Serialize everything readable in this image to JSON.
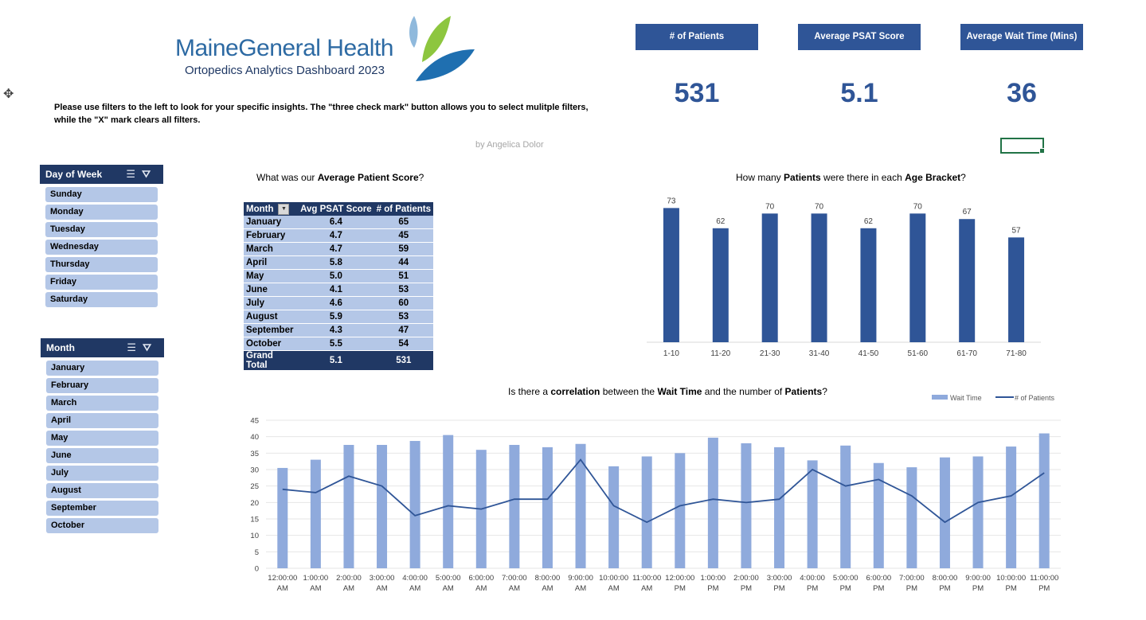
{
  "header": {
    "logo_text": "MaineGeneral Health",
    "subtitle": "Ortopedics Analytics Dashboard 2023",
    "instructions": "Please use filters to the left to look for your specific insights. The \"three check mark\" button allows you to select mulitple filters, while the \"X\" mark clears all filters.",
    "byline": "by Angelica Dolor"
  },
  "kpis": [
    {
      "label": "# of Patients",
      "value": "531"
    },
    {
      "label": "Average PSAT Score",
      "value": "5.1"
    },
    {
      "label": "Average Wait Time (Mins)",
      "value": "36"
    }
  ],
  "slicers": {
    "day": {
      "title": "Day of Week",
      "items": [
        "Sunday",
        "Monday",
        "Tuesday",
        "Wednesday",
        "Thursday",
        "Friday",
        "Saturday"
      ]
    },
    "month": {
      "title": "Month",
      "items": [
        "January",
        "February",
        "March",
        "April",
        "May",
        "June",
        "July",
        "August",
        "September",
        "October"
      ]
    }
  },
  "pivot": {
    "title_parts": [
      "What was our ",
      "Average Patient Score",
      "?"
    ],
    "headers": [
      "Month",
      "Avg PSAT Score",
      "# of Patients"
    ],
    "rows": [
      [
        "January",
        "6.4",
        "65"
      ],
      [
        "February",
        "4.7",
        "45"
      ],
      [
        "March",
        "4.7",
        "59"
      ],
      [
        "April",
        "5.8",
        "44"
      ],
      [
        "May",
        "5.0",
        "51"
      ],
      [
        "June",
        "4.1",
        "53"
      ],
      [
        "July",
        "4.6",
        "60"
      ],
      [
        "August",
        "5.9",
        "53"
      ],
      [
        "September",
        "4.3",
        "47"
      ],
      [
        "October",
        "5.5",
        "54"
      ]
    ],
    "total": [
      "Grand Total",
      "5.1",
      "531"
    ]
  },
  "chart_data": [
    {
      "type": "bar",
      "title_parts": [
        "How many ",
        "Patients",
        " were there in each ",
        "Age Bracket",
        "?"
      ],
      "categories": [
        "1-10",
        "11-20",
        "21-30",
        "31-40",
        "41-50",
        "51-60",
        "61-70",
        "71-80"
      ],
      "values": [
        73,
        62,
        70,
        70,
        62,
        70,
        67,
        57
      ],
      "ylim": [
        0,
        80
      ],
      "color": "#2f5597",
      "data_labels": true
    },
    {
      "type": "bar+line",
      "title_parts": [
        "Is there a ",
        "correlation",
        " between the ",
        "Wait Time",
        " and the number of ",
        "Patients",
        "?"
      ],
      "categories": [
        "12:00:00 AM",
        "1:00:00 AM",
        "2:00:00 AM",
        "3:00:00 AM",
        "4:00:00 AM",
        "5:00:00 AM",
        "6:00:00 AM",
        "7:00:00 AM",
        "8:00:00 AM",
        "9:00:00 AM",
        "10:00:00 AM",
        "11:00:00 AM",
        "12:00:00 PM",
        "1:00:00 PM",
        "2:00:00 PM",
        "3:00:00 PM",
        "4:00:00 PM",
        "5:00:00 PM",
        "6:00:00 PM",
        "7:00:00 PM",
        "8:00:00 PM",
        "9:00:00 PM",
        "10:00:00 PM",
        "11:00:00 PM"
      ],
      "series": [
        {
          "name": "Wait Time",
          "kind": "bar",
          "color": "#8faadc",
          "values": [
            30.5,
            33,
            37.5,
            37.5,
            38.7,
            40.5,
            36,
            37.5,
            36.8,
            37.8,
            31,
            34,
            35,
            39.7,
            38,
            36.8,
            32.8,
            37.3,
            32,
            30.7,
            33.7,
            34,
            37,
            41
          ]
        },
        {
          "name": "# of Patients",
          "kind": "line",
          "color": "#2f5597",
          "values": [
            24,
            23,
            28,
            25,
            16,
            19,
            18,
            21,
            21,
            33,
            19,
            14,
            19,
            21,
            20,
            21,
            30,
            25,
            27,
            22,
            14,
            20,
            22,
            29
          ]
        }
      ],
      "yticks": [
        0,
        5,
        10,
        15,
        20,
        25,
        30,
        35,
        40,
        45
      ],
      "ylim": [
        0,
        45
      ],
      "legend": "top-right"
    }
  ]
}
